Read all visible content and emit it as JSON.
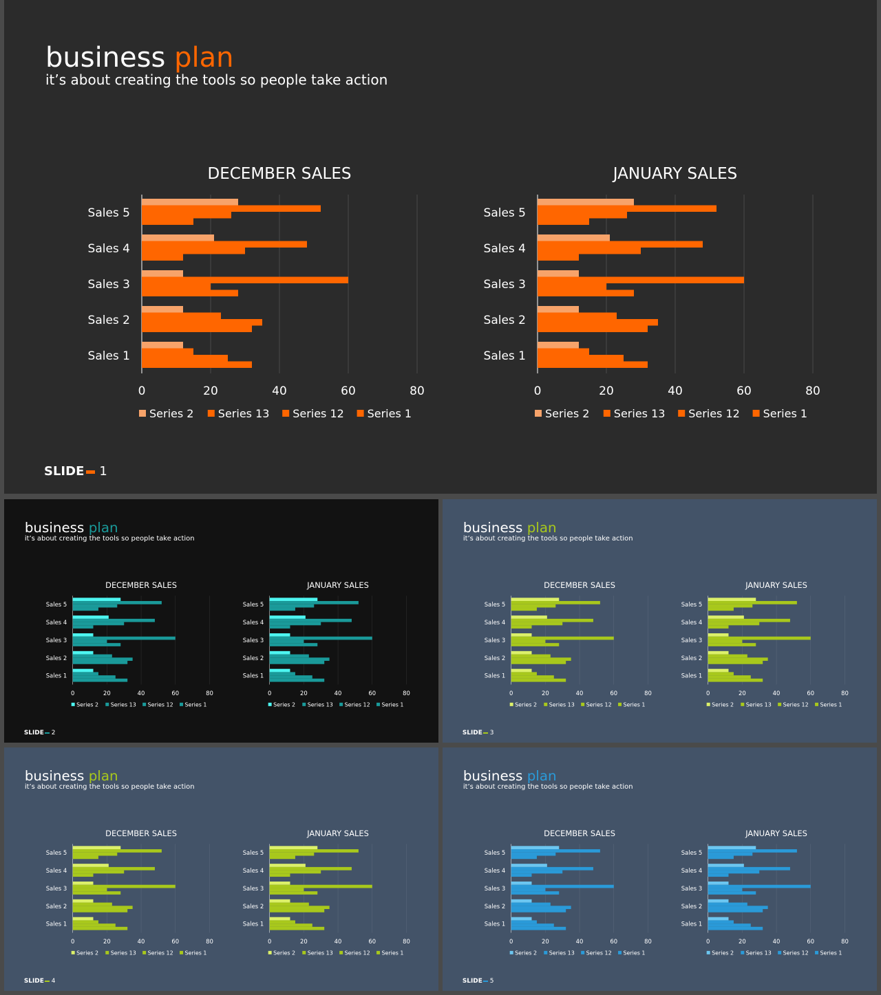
{
  "slides": [
    {
      "title_word": "business",
      "title_accent": "plan",
      "subtitle": "it’s about creating the tools so people take action",
      "footer_label": "SLIDE",
      "footer_number": "1",
      "background": "#2b2b2b",
      "accent": "#ff6600",
      "series_colors": [
        "#f7a36a",
        "#ff6600",
        "#ff6600",
        "#ff6600"
      ]
    },
    {
      "title_word": "business",
      "title_accent": "plan",
      "subtitle": "it’s about creating the tools so people take action",
      "footer_label": "SLIDE",
      "footer_number": "2",
      "background": "#121212",
      "accent": "#1a9a9a",
      "series_colors": [
        "#4df5f0",
        "#1a9a9a",
        "#1a9a9a",
        "#1a9a9a"
      ]
    },
    {
      "title_word": "business",
      "title_accent": "plan",
      "subtitle": "it’s about creating the tools so people take action",
      "footer_label": "SLIDE",
      "footer_number": "3",
      "background": "#435368",
      "accent": "#a8c81c",
      "series_colors": [
        "#dcf06a",
        "#a8c81c",
        "#a8c81c",
        "#a8c81c"
      ]
    },
    {
      "title_word": "business",
      "title_accent": "plan",
      "subtitle": "it’s about creating the tools so people take action",
      "footer_label": "SLIDE",
      "footer_number": "4",
      "background": "#435368",
      "accent": "#a8c81c",
      "series_colors": [
        "#dcf06a",
        "#a8c81c",
        "#a8c81c",
        "#a8c81c"
      ]
    },
    {
      "title_word": "business",
      "title_accent": "plan",
      "subtitle": "it’s about creating the tools so people take action",
      "footer_label": "SLIDE",
      "footer_number": "5",
      "background": "#435368",
      "accent": "#2a9ad8",
      "series_colors": [
        "#6cc6f0",
        "#2a9ad8",
        "#2a9ad8",
        "#2a9ad8"
      ]
    }
  ],
  "chart_data": [
    {
      "type": "bar",
      "orientation": "horizontal",
      "title": "DECEMBER SALES",
      "categories": [
        "Sales 1",
        "Sales 2",
        "Sales 3",
        "Sales 4",
        "Sales 5"
      ],
      "series": [
        {
          "name": "Series 2",
          "values": [
            12,
            12,
            12,
            21,
            28
          ]
        },
        {
          "name": "Series 13",
          "values": [
            15,
            23,
            60,
            48,
            52
          ]
        },
        {
          "name": "Series 12",
          "values": [
            25,
            35,
            20,
            30,
            26
          ]
        },
        {
          "name": "Series 1",
          "values": [
            32,
            32,
            28,
            12,
            15
          ]
        }
      ],
      "xlim": [
        0,
        80
      ],
      "xticks": [
        0,
        20,
        40,
        60,
        80
      ],
      "grid": true,
      "legend_position": "bottom"
    },
    {
      "type": "bar",
      "orientation": "horizontal",
      "title": "JANUARY SALES",
      "categories": [
        "Sales 1",
        "Sales 2",
        "Sales 3",
        "Sales 4",
        "Sales 5"
      ],
      "series": [
        {
          "name": "Series 2",
          "values": [
            12,
            12,
            12,
            21,
            28
          ]
        },
        {
          "name": "Series 13",
          "values": [
            15,
            23,
            60,
            48,
            52
          ]
        },
        {
          "name": "Series 12",
          "values": [
            25,
            35,
            20,
            30,
            26
          ]
        },
        {
          "name": "Series 1",
          "values": [
            32,
            32,
            28,
            12,
            15
          ]
        }
      ],
      "xlim": [
        0,
        80
      ],
      "xticks": [
        0,
        20,
        40,
        60,
        80
      ],
      "grid": true,
      "legend_position": "bottom"
    }
  ]
}
